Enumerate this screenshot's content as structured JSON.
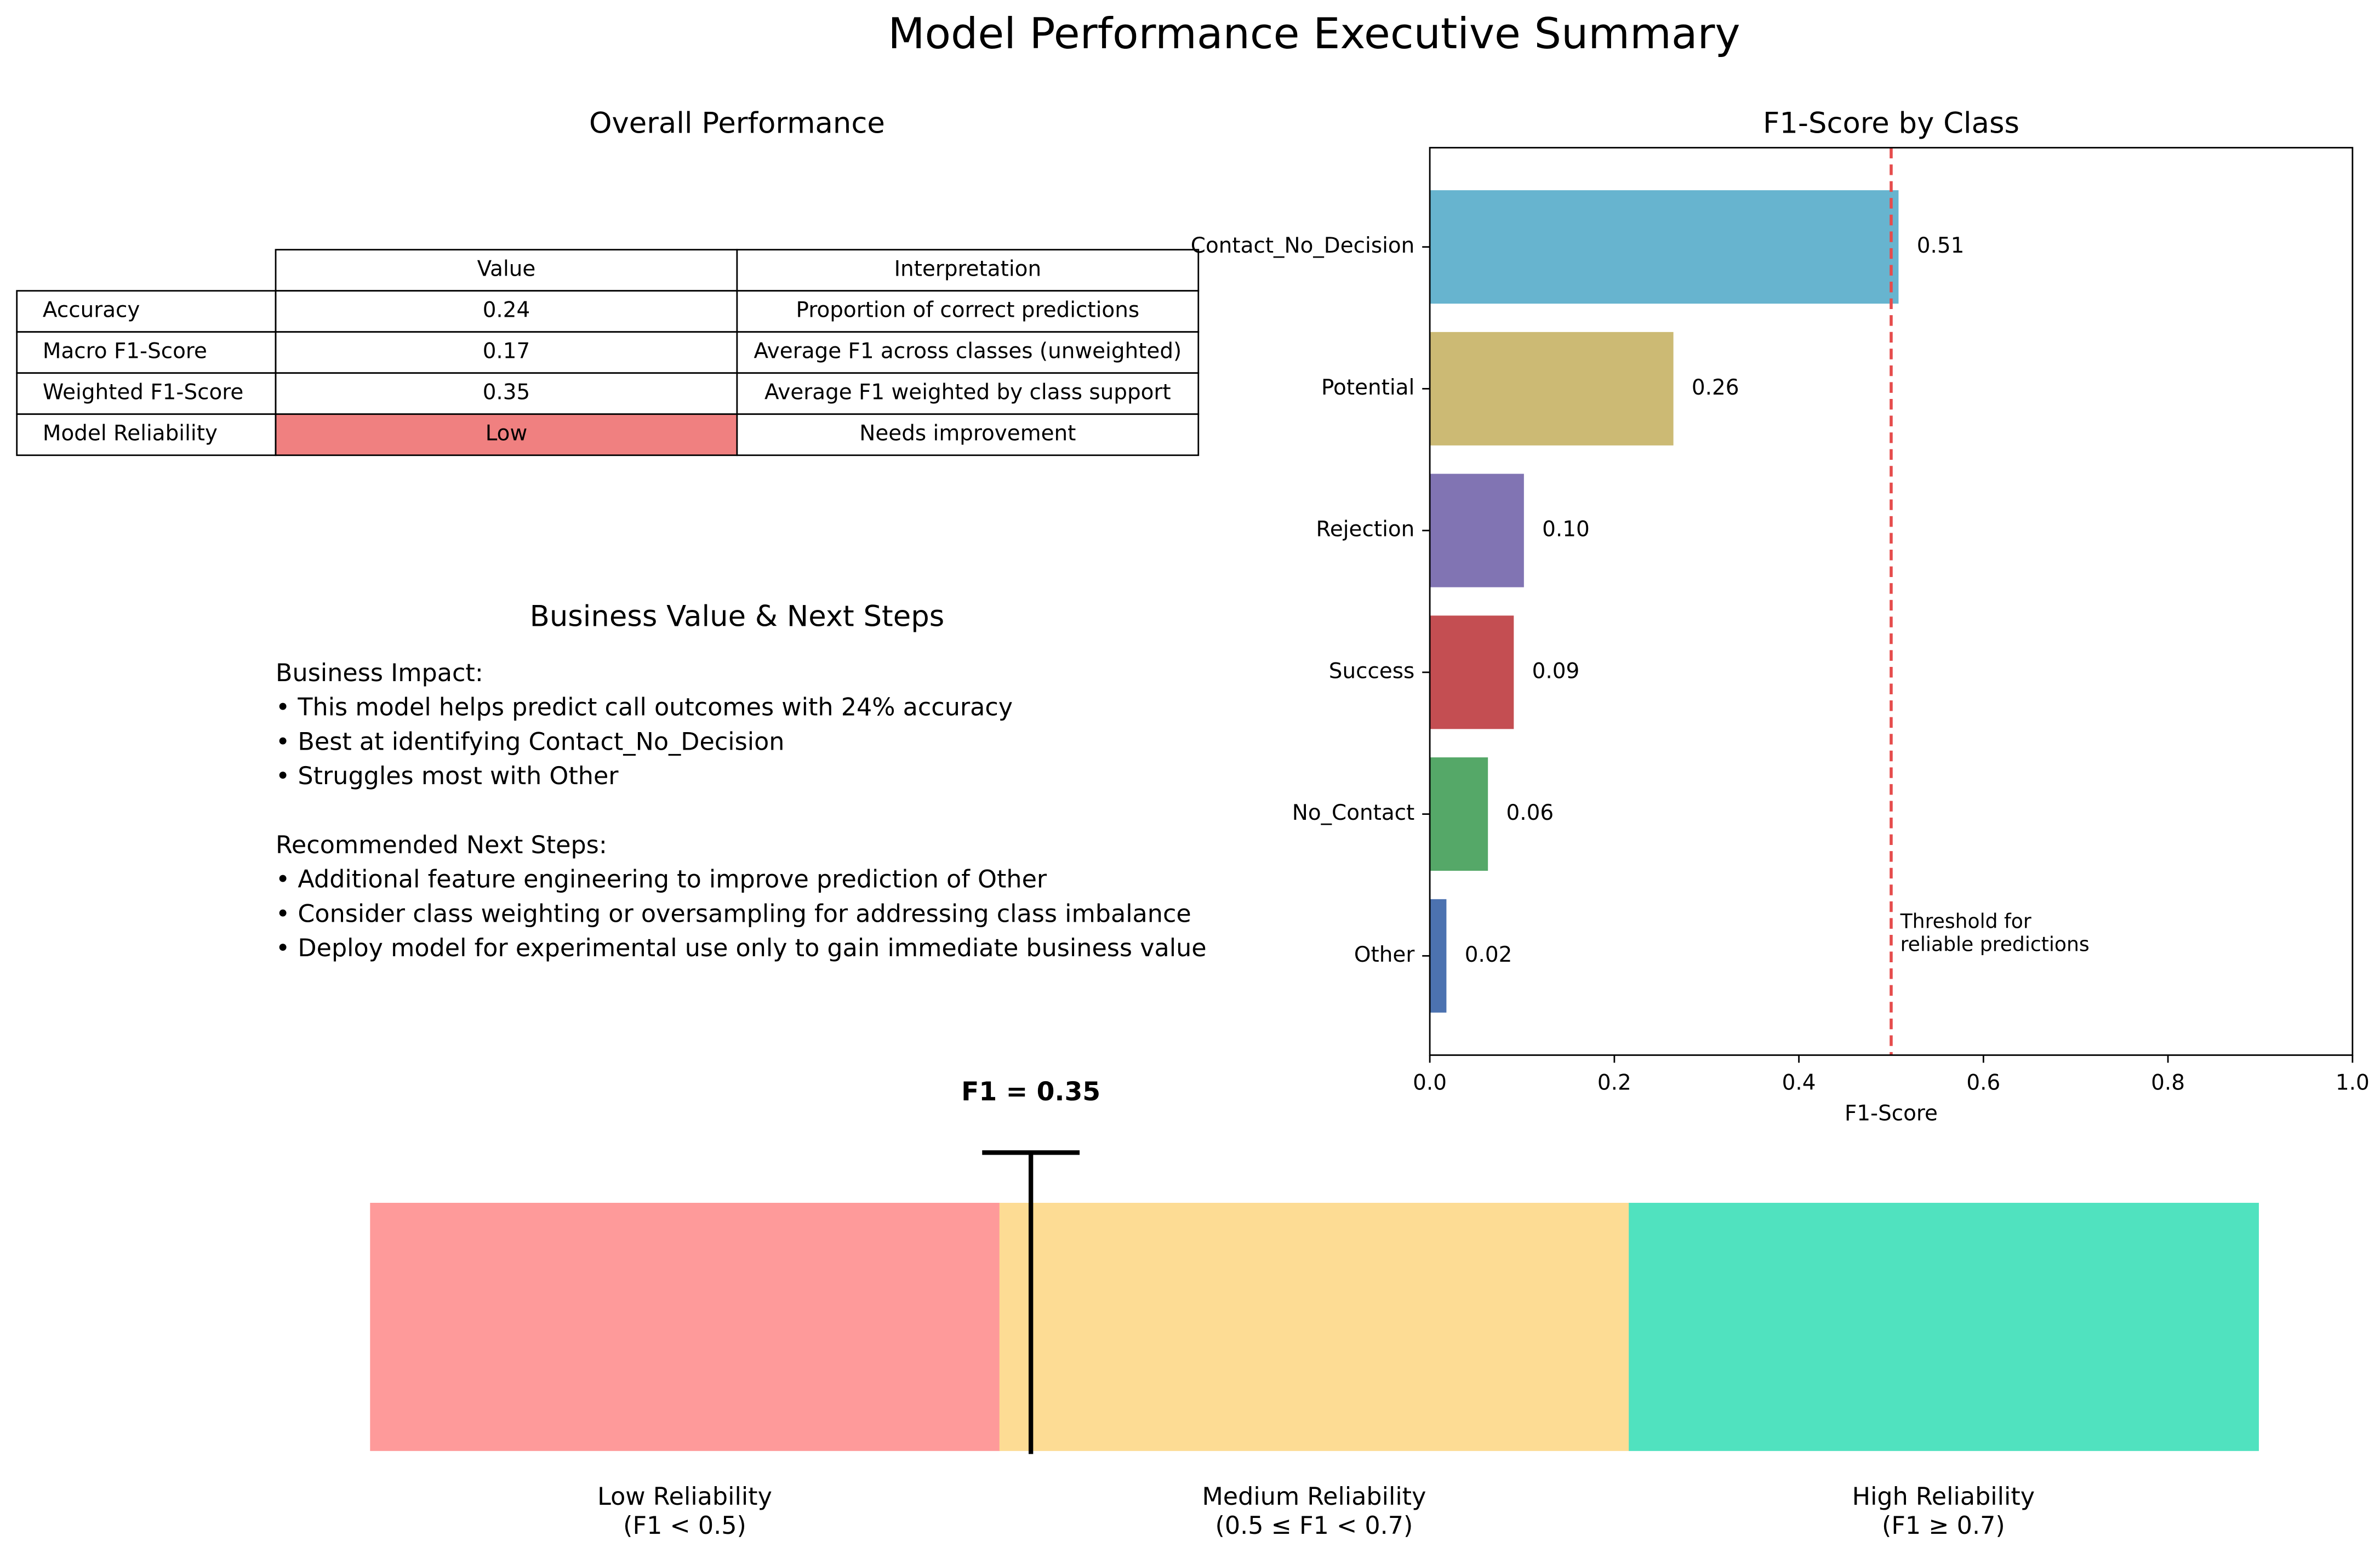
{
  "title": "Model Performance Executive Summary",
  "table": {
    "title": "Overall Performance",
    "columns": [
      "Value",
      "Interpretation"
    ],
    "rows": [
      [
        "Accuracy",
        "0.24",
        "Proportion of correct predictions"
      ],
      [
        "Macro F1-Score",
        "0.17",
        "Average F1 across classes (unweighted)"
      ],
      [
        "Weighted F1-Score",
        "0.35",
        "Average F1 weighted by class support"
      ],
      [
        "Model Reliability",
        {
          "text": "Low",
          "color": "#f08080"
        },
        "Needs improvement"
      ]
    ]
  },
  "business": {
    "title": "Business Value & Next Steps",
    "sections": [
      {
        "heading": "Business Impact:",
        "items": [
          "• This model helps predict call outcomes with 24% accuracy",
          "• Best at identifying Contact_No_Decision",
          "• Struggles most with Other"
        ]
      },
      {
        "heading": "Recommended Next Steps:",
        "items": [
          "• Additional feature engineering to improve prediction of Other",
          "• Consider class weighting or oversampling for addressing class imbalance",
          "• Deploy model for experimental use only to gain immediate business value"
        ]
      }
    ]
  },
  "chart_data": [
    {
      "type": "barh",
      "title": "F1-Score by Class",
      "xlabel": "F1-Score",
      "categories": [
        "Contact_No_Decision",
        "Potential",
        "Rejection",
        "Success",
        "No_Contact",
        "Other"
      ],
      "values": [
        0.508,
        0.264,
        0.102,
        0.091,
        0.063,
        0.018
      ],
      "value_labels": [
        "0.51",
        "0.26",
        "0.10",
        "0.09",
        "0.06",
        "0.02"
      ],
      "colors": [
        "#67b4cf",
        "#ccba74",
        "#8174b3",
        "#c44e52",
        "#55a868",
        "#4c72b0"
      ],
      "xlim": [
        0,
        1
      ],
      "xticks": [
        {
          "value": 0,
          "label": "0.0"
        },
        {
          "value": 0.2,
          "label": "0.2"
        },
        {
          "value": 0.4,
          "label": "0.4"
        },
        {
          "value": 0.6,
          "label": "0.6"
        },
        {
          "value": 0.8,
          "label": "0.8"
        },
        {
          "value": 1,
          "label": "1.0"
        }
      ],
      "threshold": 0.5,
      "threshold_color": "#e64c4c",
      "threshold_label": [
        "Threshold for",
        "reliable predictions"
      ]
    },
    {
      "type": "gauge",
      "xlim": [
        0,
        1
      ],
      "marker_value": 0.35,
      "marker_label": "F1 = 0.35",
      "bands": [
        {
          "label": "Low Reliability",
          "range": "(F1 < 0.5)",
          "color": "#fe9a9a"
        },
        {
          "label": "Medium Reliability",
          "range": "(0.5 ≤ F1 < 0.7)",
          "color": "#fddc94"
        },
        {
          "label": "High Reliability",
          "range": "(F1 ≥ 0.7)",
          "color": "#50e2bf"
        }
      ]
    }
  ]
}
